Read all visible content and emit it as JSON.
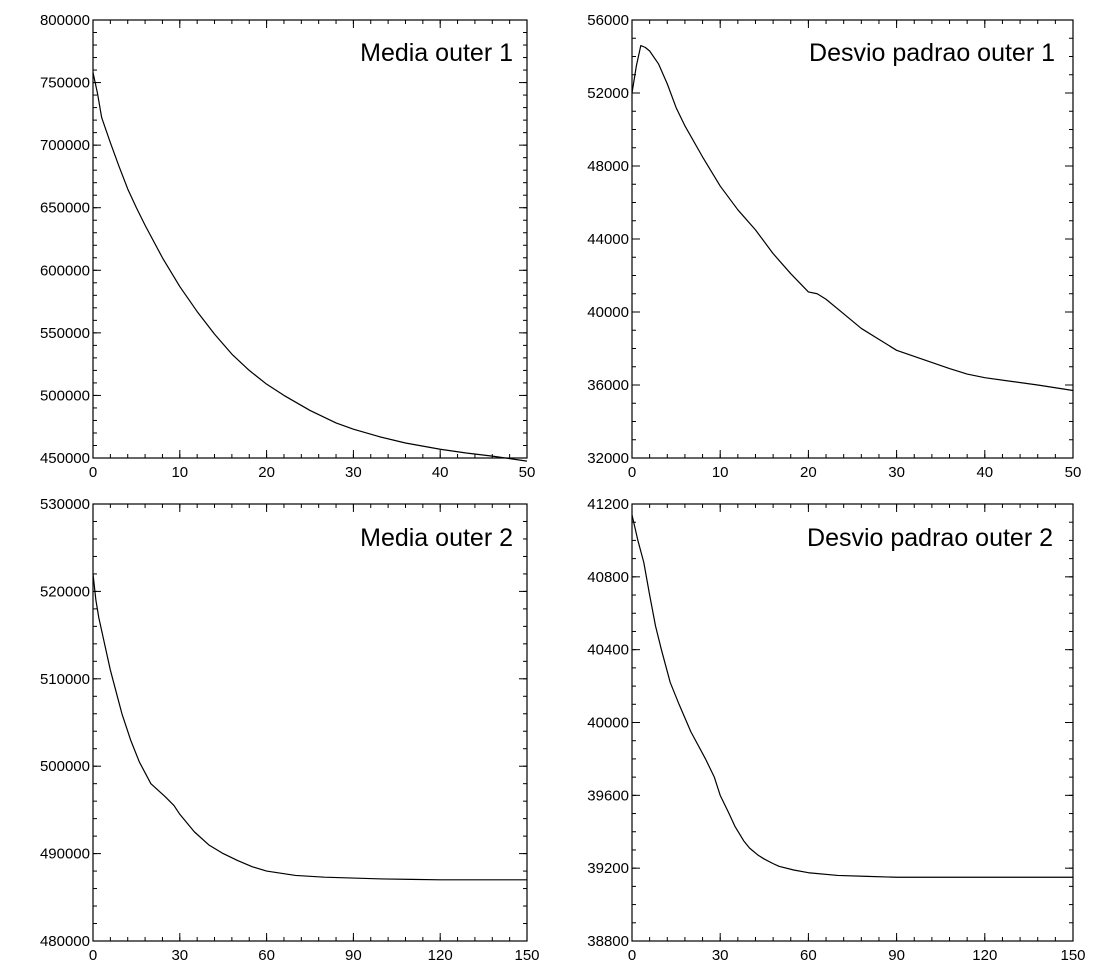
{
  "chart_data": [
    {
      "type": "line",
      "title": "Media outer 1",
      "xlabel": "",
      "ylabel": "",
      "xlim": [
        0,
        50
      ],
      "ylim": [
        450000,
        800000
      ],
      "grid": false,
      "x_ticks": [
        0,
        10,
        20,
        30,
        40,
        50
      ],
      "y_ticks": [
        450000,
        500000,
        550000,
        600000,
        650000,
        700000,
        750000,
        800000
      ],
      "x_tick_labels": [
        "0",
        "10",
        "20",
        "30",
        "40",
        "50"
      ],
      "y_tick_labels": [
        "450000",
        "500000",
        "550000",
        "600000",
        "650000",
        "700000",
        "750000",
        "800000"
      ],
      "x_minor_step": 2,
      "y_minor_step": 10000,
      "series": [
        {
          "x": [
            0,
            0.5,
            1,
            2,
            3,
            4,
            5,
            6,
            8,
            10,
            12,
            14,
            16,
            18,
            20,
            22,
            25,
            28,
            30,
            33,
            36,
            40,
            43,
            46,
            50
          ],
          "values": [
            758000,
            742000,
            722000,
            702000,
            683000,
            665000,
            650000,
            636000,
            610000,
            587000,
            567000,
            549000,
            533000,
            520000,
            509000,
            500000,
            488000,
            478000,
            473000,
            467000,
            462000,
            457000,
            454000,
            451500,
            447500
          ]
        }
      ]
    },
    {
      "type": "line",
      "title": "Desvio padrao outer 1",
      "xlabel": "",
      "ylabel": "",
      "xlim": [
        0,
        50
      ],
      "ylim": [
        32000,
        56000
      ],
      "grid": false,
      "x_ticks": [
        0,
        10,
        20,
        30,
        40,
        50
      ],
      "y_ticks": [
        32000,
        36000,
        40000,
        44000,
        48000,
        52000,
        56000
      ],
      "x_tick_labels": [
        "0",
        "10",
        "20",
        "30",
        "40",
        "50"
      ],
      "y_tick_labels": [
        "32000",
        "36000",
        "40000",
        "44000",
        "48000",
        "52000",
        "56000"
      ],
      "x_minor_step": 2,
      "y_minor_step": 1000,
      "series": [
        {
          "x": [
            0,
            0.5,
            1,
            1.5,
            2,
            3,
            4,
            5,
            6,
            8,
            10,
            12,
            14,
            16,
            18,
            20,
            21,
            22,
            24,
            26,
            28,
            30,
            33,
            36,
            38,
            40,
            43,
            46,
            48,
            50
          ],
          "values": [
            52000,
            53500,
            54600,
            54500,
            54300,
            53600,
            52500,
            51200,
            50200,
            48500,
            46900,
            45600,
            44500,
            43200,
            42100,
            41100,
            41000,
            40700,
            39900,
            39100,
            38500,
            37900,
            37400,
            36900,
            36600,
            36400,
            36200,
            36000,
            35850,
            35700
          ]
        }
      ]
    },
    {
      "type": "line",
      "title": "Media outer 2",
      "xlabel": "",
      "ylabel": "",
      "xlim": [
        0,
        150
      ],
      "ylim": [
        480000,
        530000
      ],
      "grid": false,
      "x_ticks": [
        0,
        30,
        60,
        90,
        120,
        150
      ],
      "y_ticks": [
        480000,
        490000,
        500000,
        510000,
        520000,
        530000
      ],
      "x_tick_labels": [
        "0",
        "30",
        "60",
        "90",
        "120",
        "150"
      ],
      "y_tick_labels": [
        "480000",
        "490000",
        "500000",
        "510000",
        "520000",
        "530000"
      ],
      "x_minor_step": 6,
      "y_minor_step": 2000,
      "series": [
        {
          "x": [
            0,
            1,
            2,
            4,
            6,
            8,
            10,
            13,
            16,
            20,
            25,
            28,
            30,
            35,
            40,
            45,
            50,
            55,
            60,
            70,
            80,
            90,
            100,
            110,
            120,
            130,
            140,
            150
          ],
          "values": [
            522000,
            519000,
            517000,
            514000,
            511000,
            508500,
            506000,
            503000,
            500500,
            498000,
            496500,
            495500,
            494500,
            492500,
            491000,
            490000,
            489200,
            488500,
            488000,
            487500,
            487300,
            487200,
            487100,
            487050,
            487000,
            487000,
            487000,
            487000
          ]
        }
      ]
    },
    {
      "type": "line",
      "title": "Desvio padrao outer 2",
      "xlabel": "",
      "ylabel": "",
      "xlim": [
        0,
        150
      ],
      "ylim": [
        38800,
        41200
      ],
      "grid": false,
      "x_ticks": [
        0,
        30,
        60,
        90,
        120,
        150
      ],
      "y_ticks": [
        38800,
        39200,
        39600,
        40000,
        40400,
        40800,
        41200
      ],
      "x_tick_labels": [
        "0",
        "30",
        "60",
        "90",
        "120",
        "150"
      ],
      "y_tick_labels": [
        "38800",
        "39200",
        "39600",
        "40000",
        "40400",
        "40800",
        "41200"
      ],
      "x_minor_step": 6,
      "y_minor_step": 100,
      "series": [
        {
          "x": [
            0,
            2,
            4,
            6,
            8,
            10,
            13,
            16,
            20,
            25,
            28,
            30,
            33,
            35,
            38,
            40,
            43,
            45,
            48,
            50,
            55,
            60,
            70,
            80,
            90,
            100,
            110,
            120,
            130,
            140,
            150
          ],
          "values": [
            41140,
            41000,
            40880,
            40700,
            40530,
            40400,
            40220,
            40100,
            39950,
            39800,
            39700,
            39600,
            39500,
            39430,
            39350,
            39310,
            39270,
            39250,
            39225,
            39210,
            39190,
            39175,
            39160,
            39155,
            39150,
            39150,
            39150,
            39150,
            39150,
            39150,
            39150
          ]
        }
      ]
    }
  ]
}
